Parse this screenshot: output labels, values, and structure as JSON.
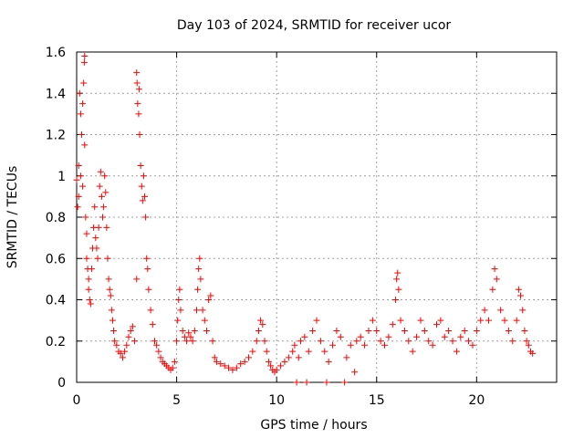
{
  "chart_data": {
    "type": "scatter",
    "title": "Day 103 of 2024, SRMTID for receiver ucor",
    "xlabel": "GPS time / hours",
    "ylabel": "SRMTID / TECUs",
    "xlim": [
      0,
      24
    ],
    "ylim": [
      0,
      1.6
    ],
    "x_ticks": [
      0,
      5,
      10,
      15,
      20
    ],
    "x_tick_labels": [
      "0",
      "5",
      "10",
      "15",
      "20"
    ],
    "y_ticks": [
      0,
      0.2,
      0.4,
      0.6,
      0.8,
      1.0,
      1.2,
      1.4,
      1.6
    ],
    "y_tick_labels": [
      "0",
      "0.2",
      "0.4",
      "0.6",
      "0.8",
      "1",
      "1.2",
      "1.4",
      "1.6"
    ],
    "grid": true,
    "marker": "plus",
    "marker_color": "#ff0000",
    "series": [
      {
        "name": "SRMTID",
        "points": [
          [
            0.0,
            0.98
          ],
          [
            0.05,
            0.85
          ],
          [
            0.1,
            1.05
          ],
          [
            0.1,
            0.9
          ],
          [
            0.15,
            1.4
          ],
          [
            0.2,
            1.3
          ],
          [
            0.2,
            1.0
          ],
          [
            0.25,
            1.2
          ],
          [
            0.3,
            1.35
          ],
          [
            0.3,
            0.95
          ],
          [
            0.35,
            1.45
          ],
          [
            0.38,
            1.55
          ],
          [
            0.4,
            1.58
          ],
          [
            0.4,
            1.15
          ],
          [
            0.45,
            0.8
          ],
          [
            0.5,
            0.72
          ],
          [
            0.5,
            0.6
          ],
          [
            0.55,
            0.55
          ],
          [
            0.6,
            0.5
          ],
          [
            0.6,
            0.45
          ],
          [
            0.65,
            0.4
          ],
          [
            0.7,
            0.38
          ],
          [
            0.75,
            0.55
          ],
          [
            0.8,
            0.65
          ],
          [
            0.85,
            0.75
          ],
          [
            0.9,
            0.85
          ],
          [
            0.95,
            0.7
          ],
          [
            1.0,
            0.65
          ],
          [
            1.05,
            0.6
          ],
          [
            1.1,
            0.75
          ],
          [
            1.15,
            0.95
          ],
          [
            1.2,
            1.02
          ],
          [
            1.25,
            0.9
          ],
          [
            1.3,
            0.8
          ],
          [
            1.35,
            0.85
          ],
          [
            1.4,
            1.0
          ],
          [
            1.45,
            0.92
          ],
          [
            1.5,
            0.75
          ],
          [
            1.55,
            0.6
          ],
          [
            1.6,
            0.5
          ],
          [
            1.65,
            0.45
          ],
          [
            1.7,
            0.42
          ],
          [
            1.75,
            0.35
          ],
          [
            1.8,
            0.3
          ],
          [
            1.85,
            0.25
          ],
          [
            1.9,
            0.2
          ],
          [
            2.0,
            0.18
          ],
          [
            2.1,
            0.15
          ],
          [
            2.2,
            0.14
          ],
          [
            2.3,
            0.12
          ],
          [
            2.4,
            0.15
          ],
          [
            2.5,
            0.18
          ],
          [
            2.6,
            0.22
          ],
          [
            2.7,
            0.25
          ],
          [
            2.8,
            0.27
          ],
          [
            2.9,
            0.2
          ],
          [
            3.0,
            0.5
          ],
          [
            3.0,
            1.5
          ],
          [
            3.02,
            1.45
          ],
          [
            3.05,
            1.35
          ],
          [
            3.1,
            1.3
          ],
          [
            3.12,
            1.42
          ],
          [
            3.15,
            1.2
          ],
          [
            3.2,
            1.05
          ],
          [
            3.25,
            0.95
          ],
          [
            3.3,
            0.88
          ],
          [
            3.35,
            1.0
          ],
          [
            3.4,
            0.9
          ],
          [
            3.45,
            0.8
          ],
          [
            3.5,
            0.6
          ],
          [
            3.55,
            0.55
          ],
          [
            3.6,
            0.45
          ],
          [
            3.7,
            0.35
          ],
          [
            3.8,
            0.28
          ],
          [
            3.9,
            0.2
          ],
          [
            4.0,
            0.18
          ],
          [
            4.1,
            0.15
          ],
          [
            4.2,
            0.12
          ],
          [
            4.3,
            0.1
          ],
          [
            4.4,
            0.09
          ],
          [
            4.5,
            0.08
          ],
          [
            4.6,
            0.07
          ],
          [
            4.7,
            0.06
          ],
          [
            4.8,
            0.07
          ],
          [
            4.9,
            0.1
          ],
          [
            5.0,
            0.2
          ],
          [
            5.05,
            0.3
          ],
          [
            5.1,
            0.4
          ],
          [
            5.15,
            0.45
          ],
          [
            5.2,
            0.35
          ],
          [
            5.3,
            0.25
          ],
          [
            5.4,
            0.22
          ],
          [
            5.5,
            0.2
          ],
          [
            5.6,
            0.24
          ],
          [
            5.7,
            0.22
          ],
          [
            5.8,
            0.2
          ],
          [
            5.9,
            0.25
          ],
          [
            6.0,
            0.35
          ],
          [
            6.05,
            0.45
          ],
          [
            6.1,
            0.55
          ],
          [
            6.15,
            0.6
          ],
          [
            6.2,
            0.5
          ],
          [
            6.3,
            0.35
          ],
          [
            6.4,
            0.3
          ],
          [
            6.5,
            0.25
          ],
          [
            6.6,
            0.4
          ],
          [
            6.7,
            0.42
          ],
          [
            6.8,
            0.2
          ],
          [
            6.9,
            0.12
          ],
          [
            7.0,
            0.1
          ],
          [
            7.2,
            0.09
          ],
          [
            7.4,
            0.08
          ],
          [
            7.6,
            0.07
          ],
          [
            7.8,
            0.06
          ],
          [
            8.0,
            0.07
          ],
          [
            8.2,
            0.09
          ],
          [
            8.4,
            0.1
          ],
          [
            8.6,
            0.12
          ],
          [
            8.8,
            0.15
          ],
          [
            9.0,
            0.2
          ],
          [
            9.1,
            0.25
          ],
          [
            9.2,
            0.3
          ],
          [
            9.3,
            0.28
          ],
          [
            9.4,
            0.2
          ],
          [
            9.5,
            0.15
          ],
          [
            9.6,
            0.1
          ],
          [
            9.7,
            0.08
          ],
          [
            9.8,
            0.06
          ],
          [
            9.9,
            0.05
          ],
          [
            10.0,
            0.06
          ],
          [
            10.2,
            0.08
          ],
          [
            10.4,
            0.1
          ],
          [
            10.6,
            0.12
          ],
          [
            10.8,
            0.15
          ],
          [
            10.9,
            0.18
          ],
          [
            11.0,
            0.0
          ],
          [
            11.1,
            0.12
          ],
          [
            11.2,
            0.2
          ],
          [
            11.4,
            0.22
          ],
          [
            11.5,
            0.0
          ],
          [
            11.6,
            0.15
          ],
          [
            11.8,
            0.25
          ],
          [
            12.0,
            0.3
          ],
          [
            12.2,
            0.2
          ],
          [
            12.4,
            0.15
          ],
          [
            12.5,
            0.0
          ],
          [
            12.6,
            0.1
          ],
          [
            12.8,
            0.18
          ],
          [
            13.0,
            0.25
          ],
          [
            13.2,
            0.22
          ],
          [
            13.4,
            0.0
          ],
          [
            13.5,
            0.12
          ],
          [
            13.7,
            0.18
          ],
          [
            13.9,
            0.05
          ],
          [
            14.0,
            0.2
          ],
          [
            14.2,
            0.22
          ],
          [
            14.4,
            0.18
          ],
          [
            14.6,
            0.25
          ],
          [
            14.8,
            0.3
          ],
          [
            15.0,
            0.25
          ],
          [
            15.2,
            0.2
          ],
          [
            15.4,
            0.18
          ],
          [
            15.6,
            0.22
          ],
          [
            15.8,
            0.28
          ],
          [
            15.95,
            0.4
          ],
          [
            16.0,
            0.5
          ],
          [
            16.05,
            0.53
          ],
          [
            16.1,
            0.45
          ],
          [
            16.2,
            0.3
          ],
          [
            16.4,
            0.25
          ],
          [
            16.6,
            0.2
          ],
          [
            16.8,
            0.15
          ],
          [
            17.0,
            0.22
          ],
          [
            17.2,
            0.3
          ],
          [
            17.4,
            0.25
          ],
          [
            17.6,
            0.2
          ],
          [
            17.8,
            0.18
          ],
          [
            18.0,
            0.28
          ],
          [
            18.2,
            0.3
          ],
          [
            18.4,
            0.22
          ],
          [
            18.6,
            0.25
          ],
          [
            18.8,
            0.2
          ],
          [
            19.0,
            0.15
          ],
          [
            19.2,
            0.22
          ],
          [
            19.4,
            0.25
          ],
          [
            19.6,
            0.2
          ],
          [
            19.8,
            0.18
          ],
          [
            20.0,
            0.25
          ],
          [
            20.2,
            0.3
          ],
          [
            20.4,
            0.35
          ],
          [
            20.6,
            0.3
          ],
          [
            20.8,
            0.45
          ],
          [
            20.9,
            0.55
          ],
          [
            21.0,
            0.5
          ],
          [
            21.2,
            0.35
          ],
          [
            21.4,
            0.3
          ],
          [
            21.6,
            0.25
          ],
          [
            21.8,
            0.2
          ],
          [
            22.0,
            0.3
          ],
          [
            22.1,
            0.45
          ],
          [
            22.2,
            0.42
          ],
          [
            22.3,
            0.35
          ],
          [
            22.4,
            0.25
          ],
          [
            22.5,
            0.2
          ],
          [
            22.6,
            0.18
          ],
          [
            22.7,
            0.15
          ],
          [
            22.8,
            0.14
          ]
        ]
      }
    ]
  }
}
